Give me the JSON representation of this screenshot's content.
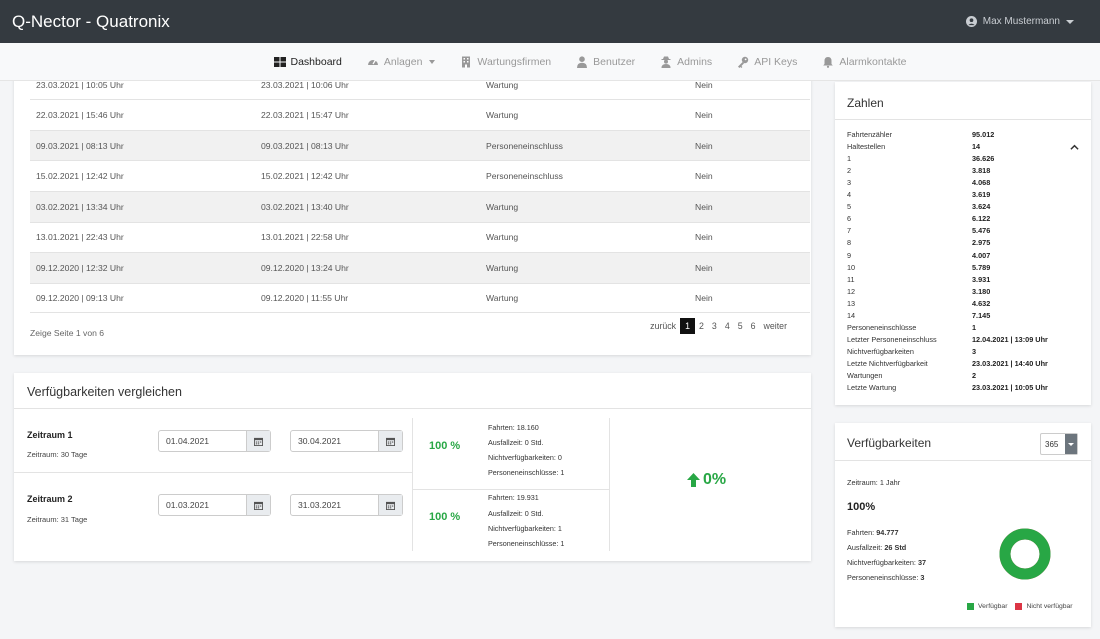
{
  "app": {
    "title": "Q-Nector - Quatronix",
    "user": "Max Mustermann"
  },
  "nav": {
    "items": [
      {
        "label": "Dashboard",
        "icon": "dashboard-icon",
        "active": true
      },
      {
        "label": "Anlagen",
        "icon": "gauge-icon",
        "dropdown": true
      },
      {
        "label": "Wartungsfirmen",
        "icon": "building-icon"
      },
      {
        "label": "Benutzer",
        "icon": "user-icon"
      },
      {
        "label": "Admins",
        "icon": "user-secret-icon"
      },
      {
        "label": "API Keys",
        "icon": "key-icon"
      },
      {
        "label": "Alarmkontakte",
        "icon": "bell-icon"
      }
    ]
  },
  "events_table": {
    "rows": [
      {
        "start": "23.03.2021 | 10:05 Uhr",
        "end": "23.03.2021 | 10:06 Uhr",
        "type": "Wartung",
        "flag": "Nein"
      },
      {
        "start": "22.03.2021 | 15:46 Uhr",
        "end": "22.03.2021 | 15:47 Uhr",
        "type": "Wartung",
        "flag": "Nein"
      },
      {
        "start": "09.03.2021 | 08:13 Uhr",
        "end": "09.03.2021 | 08:13 Uhr",
        "type": "Personeneinschluss",
        "flag": "Nein"
      },
      {
        "start": "15.02.2021 | 12:42 Uhr",
        "end": "15.02.2021 | 12:42 Uhr",
        "type": "Personeneinschluss",
        "flag": "Nein"
      },
      {
        "start": "03.02.2021 | 13:34 Uhr",
        "end": "03.02.2021 | 13:40 Uhr",
        "type": "Wartung",
        "flag": "Nein"
      },
      {
        "start": "13.01.2021 | 22:43 Uhr",
        "end": "13.01.2021 | 22:58 Uhr",
        "type": "Wartung",
        "flag": "Nein"
      },
      {
        "start": "09.12.2020 | 12:32 Uhr",
        "end": "09.12.2020 | 13:24 Uhr",
        "type": "Wartung",
        "flag": "Nein"
      },
      {
        "start": "09.12.2020 | 09:13 Uhr",
        "end": "09.12.2020 | 11:55 Uhr",
        "type": "Wartung",
        "flag": "Nein"
      }
    ],
    "info": "Zeige Seite 1 von 6",
    "pager": {
      "prev": "zurück",
      "pages": [
        "1",
        "2",
        "3",
        "4",
        "5",
        "6"
      ],
      "current": "1",
      "next": "weiter"
    }
  },
  "compare": {
    "title": "Verfügbarkeiten vergleichen",
    "periods": [
      {
        "label": "Zeitraum 1",
        "sub": "Zeitraum: 30 Tage",
        "from": "01.04.2021",
        "to": "30.04.2021",
        "percent": "100 %",
        "stats": [
          "Fahrten: 18.160",
          "Ausfallzeit: 0 Std.",
          "Nichtverfügbarkeiten: 0",
          "Personeneinschlüsse: 1"
        ]
      },
      {
        "label": "Zeitraum 2",
        "sub": "Zeitraum: 31 Tage",
        "from": "01.03.2021",
        "to": "31.03.2021",
        "percent": "100 %",
        "stats": [
          "Fahrten: 19.931",
          "Ausfallzeit: 0 Std.",
          "Nichtverfügbarkeiten: 1",
          "Personeneinschlüsse: 1"
        ]
      }
    ],
    "difference": "0%"
  },
  "zahlen": {
    "title": "Zahlen",
    "rows": [
      {
        "k": "Fahrtenzähler",
        "v": "95.012"
      },
      {
        "k": "Haltestellen",
        "v": "14"
      },
      {
        "k": "1",
        "v": "36.626"
      },
      {
        "k": "2",
        "v": "3.818"
      },
      {
        "k": "3",
        "v": "4.068"
      },
      {
        "k": "4",
        "v": "3.619"
      },
      {
        "k": "5",
        "v": "3.624"
      },
      {
        "k": "6",
        "v": "6.122"
      },
      {
        "k": "7",
        "v": "5.476"
      },
      {
        "k": "8",
        "v": "2.975"
      },
      {
        "k": "9",
        "v": "4.007"
      },
      {
        "k": "10",
        "v": "5.789"
      },
      {
        "k": "11",
        "v": "3.931"
      },
      {
        "k": "12",
        "v": "3.180"
      },
      {
        "k": "13",
        "v": "4.632"
      },
      {
        "k": "14",
        "v": "7.145"
      },
      {
        "k": "Personeneinschlüsse",
        "v": "1"
      },
      {
        "k": "Letzter Personeneinschluss",
        "v": "12.04.2021 | 13:09 Uhr"
      },
      {
        "k": "Nichtverfügbarkeiten",
        "v": "3"
      },
      {
        "k": "Letzte Nichtverfügbarkeit",
        "v": "23.03.2021 | 14:40 Uhr"
      },
      {
        "k": "Wartungen",
        "v": "2"
      },
      {
        "k": "Letzte Wartung",
        "v": "23.03.2021 | 10:05 Uhr"
      }
    ]
  },
  "verfuegbarkeit": {
    "title": "Verfügbarkeiten",
    "select_value": "365",
    "zeitraum": "Zeitraum: 1 Jahr",
    "percent": "100%",
    "stats": [
      {
        "k": "Fahrten:",
        "v": "94.777"
      },
      {
        "k": "Ausfallzeit:",
        "v": "26 Std"
      },
      {
        "k": "Nichtverfügbarkeiten:",
        "v": "37"
      },
      {
        "k": "Personeneinschlüsse:",
        "v": "3"
      }
    ],
    "chart": {
      "available_fraction": 1.0,
      "unavailable_fraction": 0.0
    },
    "legend": {
      "available": "Verfügbar",
      "unavailable": "Nicht verfügbar"
    },
    "colors": {
      "available": "#28a745",
      "unavailable": "#dc3545"
    }
  }
}
